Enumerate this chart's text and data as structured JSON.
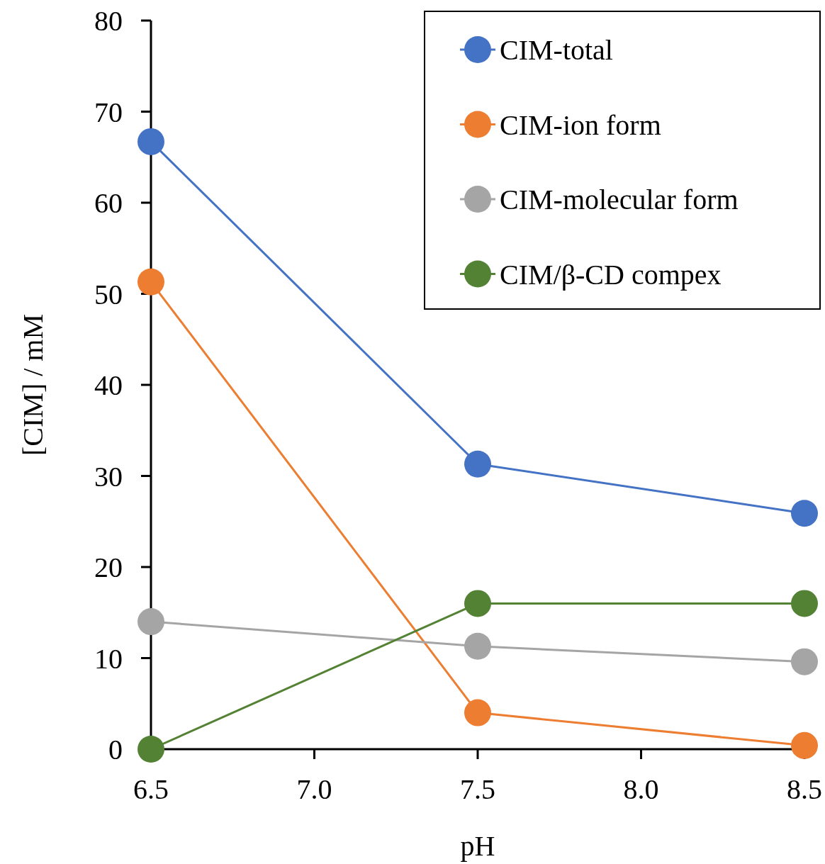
{
  "chart_data": {
    "type": "line",
    "xlabel": "pH",
    "ylabel": "[CIM] / mM",
    "x": [
      6.5,
      7.5,
      8.5
    ],
    "xlim": [
      6.5,
      8.5
    ],
    "xticks": [
      {
        "value": 6.5,
        "label": "6.5"
      },
      {
        "value": 7,
        "label": "7.0"
      },
      {
        "value": 7.5,
        "label": "7.5"
      },
      {
        "value": 8,
        "label": "8.0"
      },
      {
        "value": 8.5,
        "label": "8.5"
      }
    ],
    "ylim": [
      0,
      80
    ],
    "yticks": [
      0,
      10,
      20,
      30,
      40,
      50,
      60,
      70,
      80
    ],
    "grid": false,
    "legend": "top right",
    "marker": "circle",
    "line_style": "solid",
    "series": [
      {
        "name": "CIM-total",
        "color": "#4472c4",
        "values": [
          66.7,
          31.3,
          25.9
        ]
      },
      {
        "name": "CIM-ion form",
        "color": "#ed7d31",
        "values": [
          51.3,
          4.0,
          0.4
        ]
      },
      {
        "name": "CIM-molecular form",
        "color": "#a5a5a5",
        "values": [
          14.0,
          11.3,
          9.6
        ]
      },
      {
        "name": "CIM/β-CD compex",
        "color": "#548235",
        "values": [
          0,
          16.0,
          16.0
        ]
      }
    ]
  }
}
